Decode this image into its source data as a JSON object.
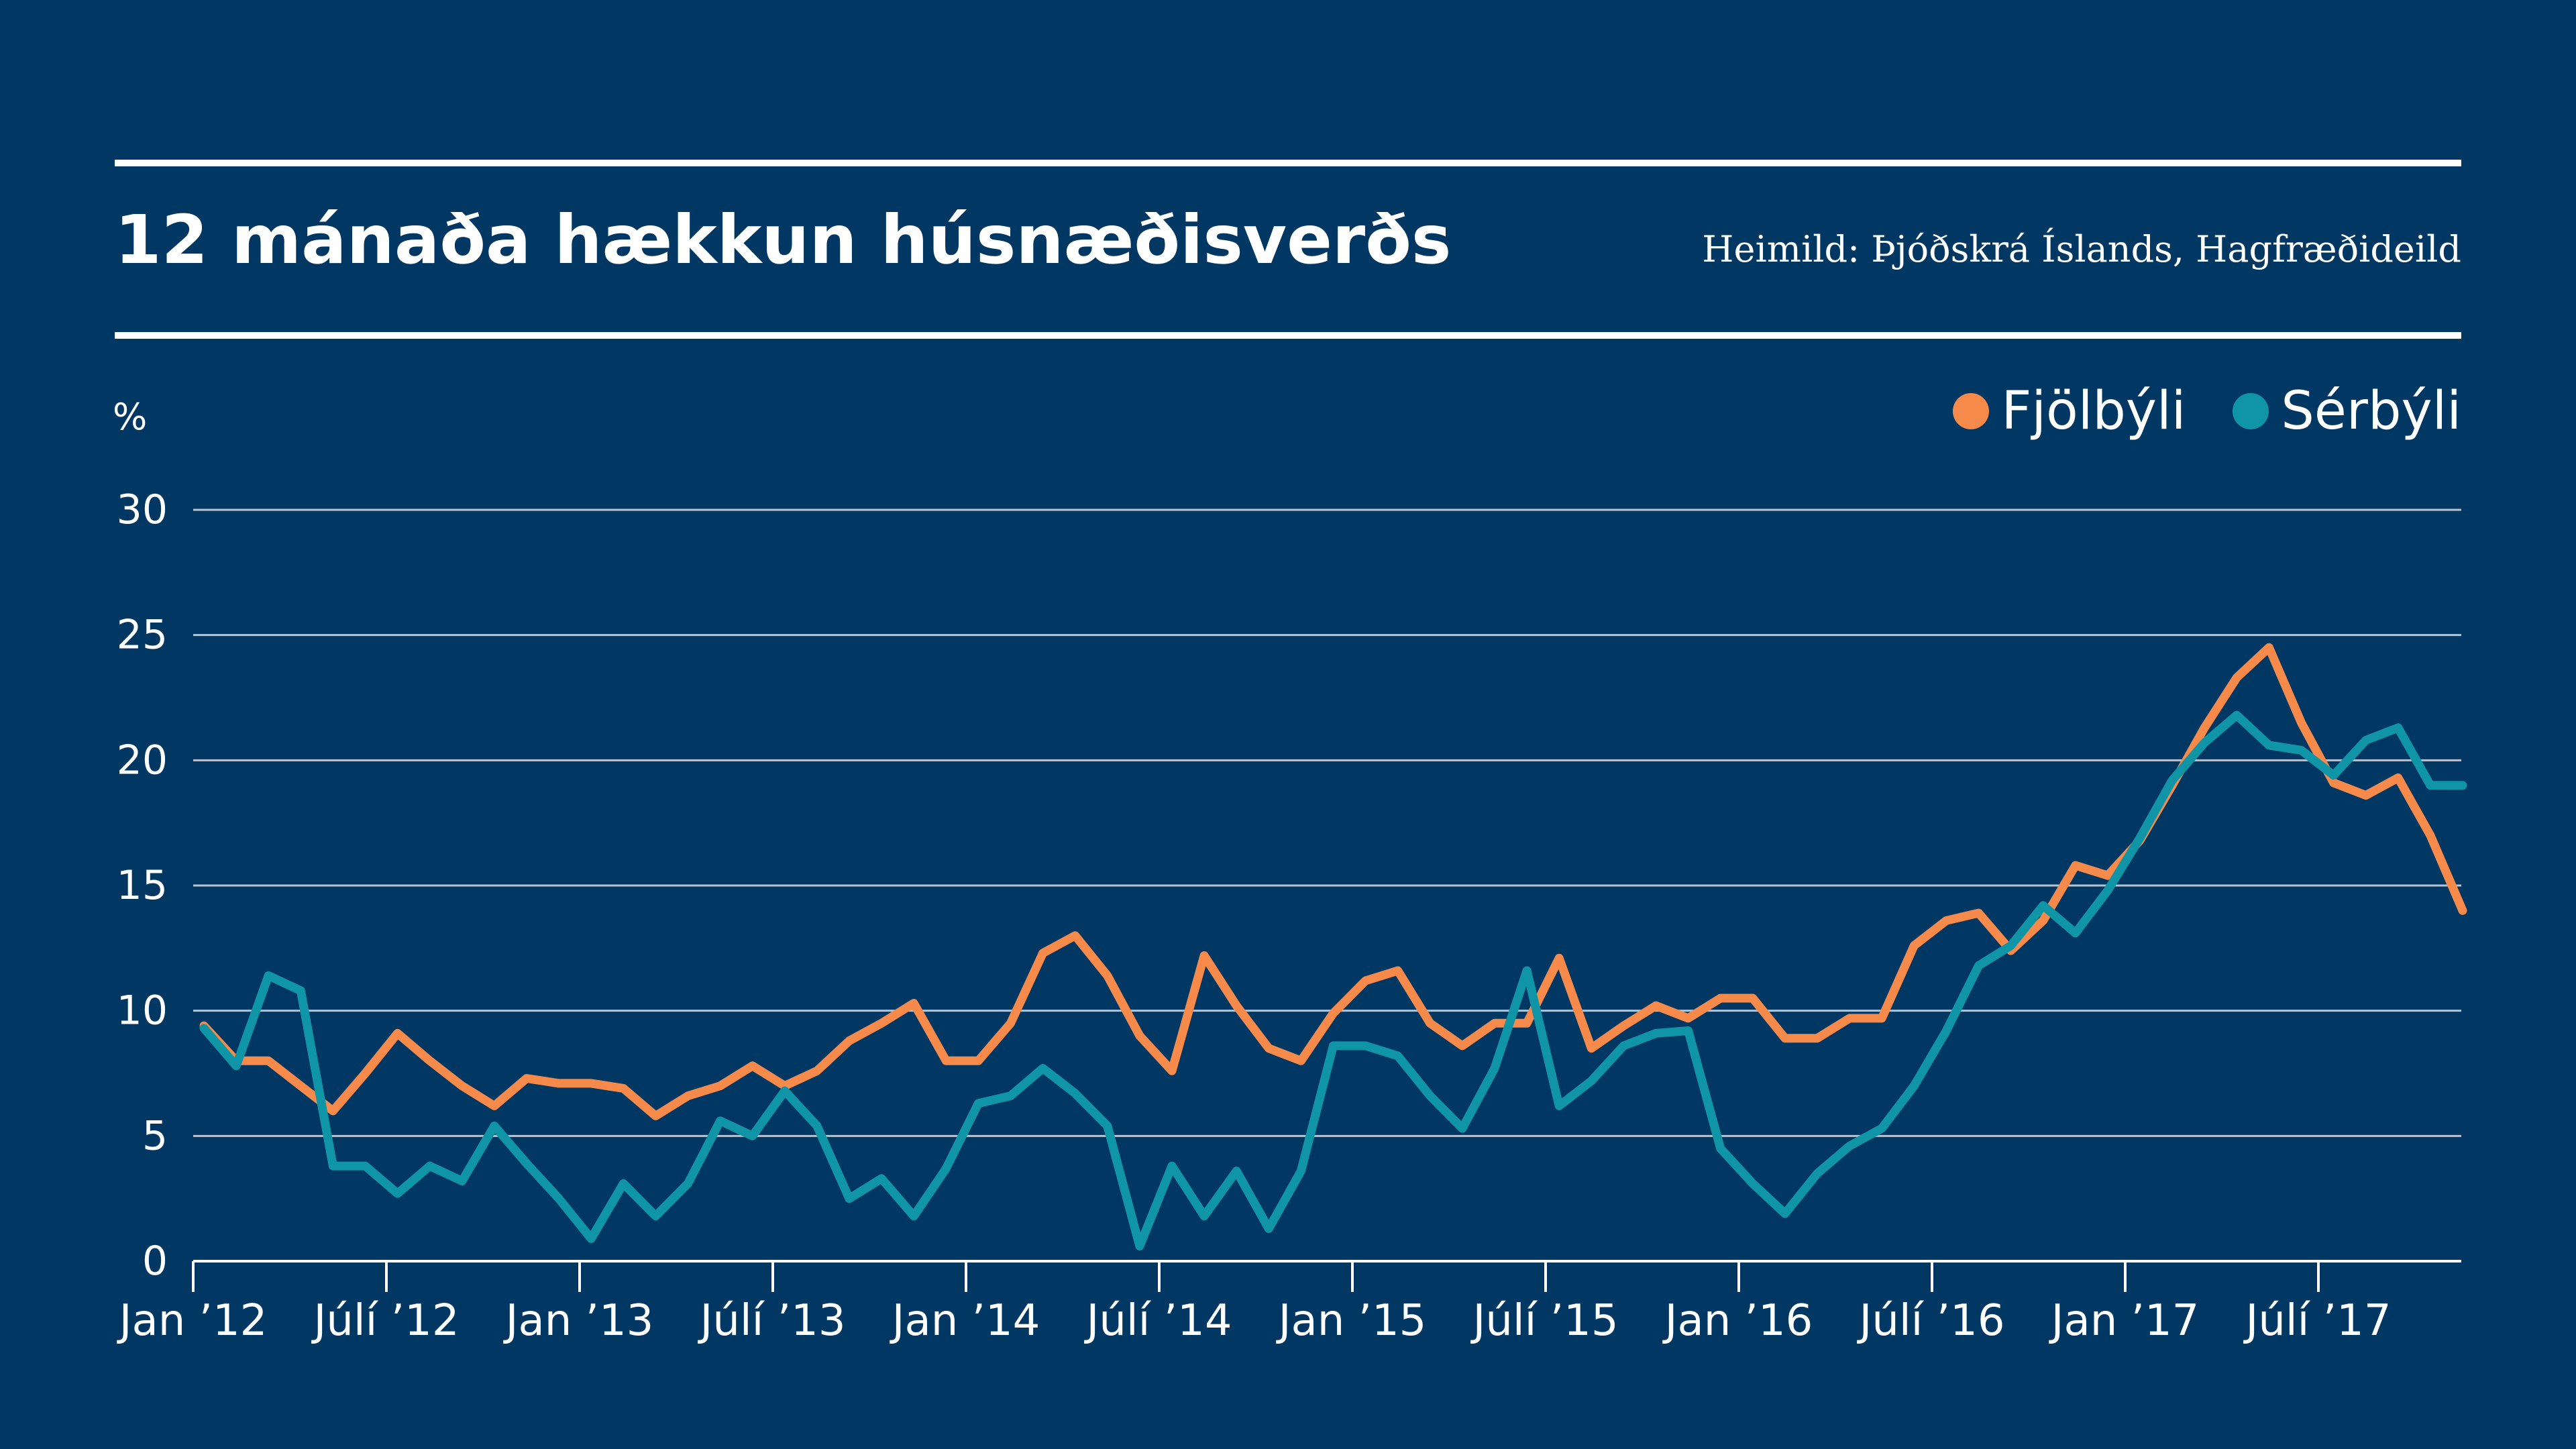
{
  "header": {
    "title": "12 mánaða hækkun húsnæðisverðs",
    "source": "Heimild: Þjóðskrá Íslands, Hagfræðideild"
  },
  "chart_data": {
    "type": "line",
    "unit_label": "%",
    "ylim": [
      0,
      30
    ],
    "y_ticks": [
      "0",
      "5",
      "10",
      "15",
      "20",
      "25",
      "30"
    ],
    "x_tick_labels": [
      "Jan ’12",
      "Júlí ’12",
      "Jan ’13",
      "Júlí ’13",
      "Jan ’14",
      "Júlí ’14",
      "Jan ’15",
      "Júlí ’15",
      "Jan ’16",
      "Júlí ’16",
      "Jan ’17",
      "Júlí ’17"
    ],
    "grid": true,
    "legend_position": "top-right",
    "series": [
      {
        "name": "Fjölbýli",
        "color": "#f58a4b",
        "values": [
          9.4,
          8.0,
          8.0,
          7.0,
          6.0,
          7.5,
          9.1,
          8.0,
          7.0,
          6.2,
          7.3,
          7.1,
          7.1,
          6.9,
          5.8,
          6.6,
          7.0,
          7.8,
          7.0,
          7.6,
          8.8,
          9.5,
          10.3,
          8.0,
          8.0,
          9.5,
          12.3,
          13.0,
          11.4,
          9.0,
          7.6,
          12.2,
          10.2,
          8.5,
          8.0,
          9.9,
          11.2,
          11.6,
          9.5,
          8.6,
          9.5,
          9.5,
          12.1,
          8.5,
          9.4,
          10.2,
          9.7,
          10.5,
          10.5,
          8.9,
          8.9,
          9.7,
          9.7,
          12.6,
          13.6,
          13.9,
          12.4,
          13.6,
          15.8,
          15.4,
          16.8,
          19.0,
          21.3,
          23.3,
          24.5,
          21.5,
          19.1,
          18.6,
          19.3,
          17.0,
          14.0
        ],
        "last_index": 70
      },
      {
        "name": "Sérbýli",
        "color": "#1095a6",
        "values": [
          9.3,
          7.8,
          11.4,
          10.8,
          3.8,
          3.8,
          2.7,
          3.8,
          3.2,
          5.4,
          3.9,
          2.5,
          0.9,
          3.1,
          1.8,
          3.1,
          5.6,
          5.0,
          6.8,
          5.4,
          2.5,
          3.3,
          1.8,
          3.7,
          6.3,
          6.6,
          7.7,
          6.7,
          5.4,
          0.6,
          3.8,
          1.8,
          3.6,
          1.3,
          3.6,
          8.6,
          8.6,
          8.2,
          6.6,
          5.3,
          7.7,
          11.6,
          6.2,
          7.2,
          8.6,
          9.1,
          9.2,
          4.5,
          3.1,
          1.9,
          3.5,
          4.6,
          5.3,
          7.0,
          9.2,
          11.8,
          12.6,
          14.2,
          13.1,
          14.8,
          16.9,
          19.2,
          20.7,
          21.8,
          20.6,
          20.4,
          19.4,
          20.8,
          21.3,
          19.0,
          19.0
        ],
        "last_index": 70
      }
    ]
  }
}
